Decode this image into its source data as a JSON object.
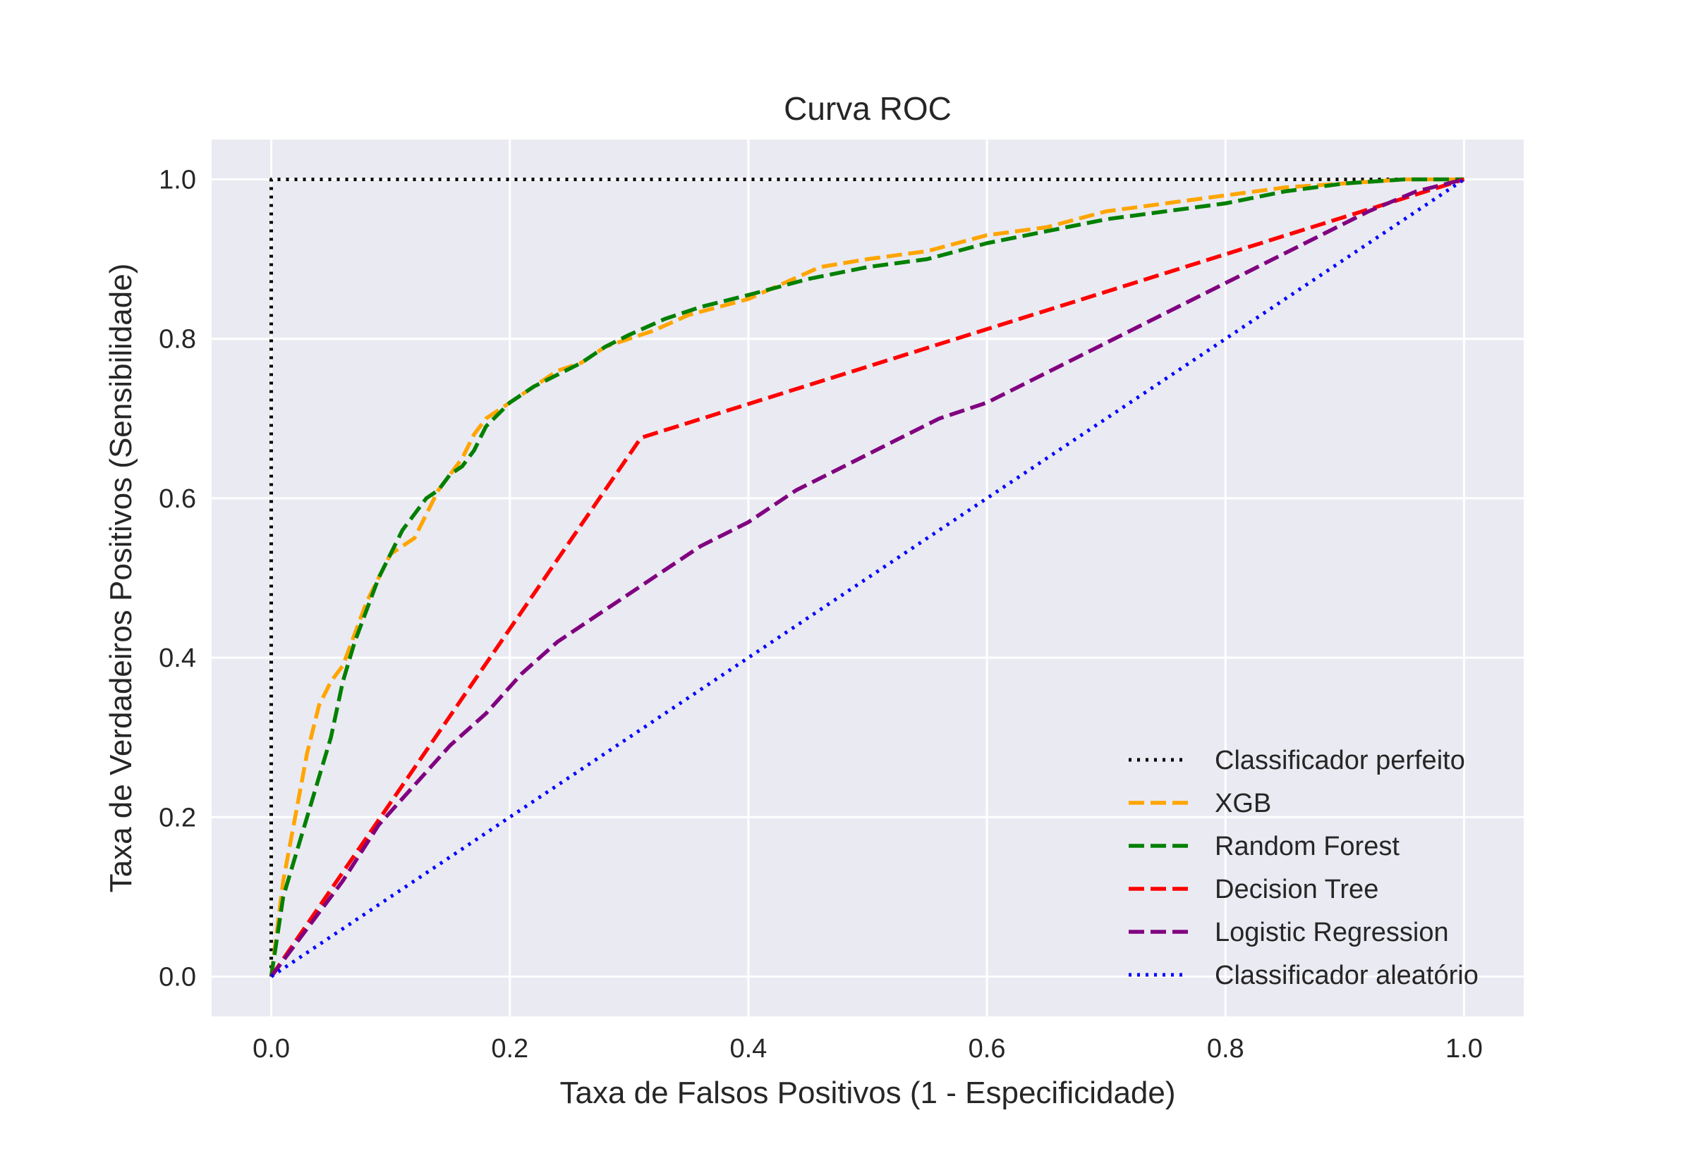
{
  "chart_data": {
    "type": "line",
    "title": "Curva ROC",
    "xlabel": "Taxa de Falsos Positivos (1 - Especificidade)",
    "ylabel": "Taxa de Verdadeiros Positivos (Sensibilidade)",
    "xlim": [
      -0.05,
      1.05
    ],
    "ylim": [
      -0.05,
      1.05
    ],
    "xticks": [
      "0.0",
      "0.2",
      "0.4",
      "0.6",
      "0.8",
      "1.0"
    ],
    "yticks": [
      "0.0",
      "0.2",
      "0.4",
      "0.6",
      "0.8",
      "1.0"
    ],
    "grid": true,
    "background": "#eaeaf2",
    "legend_position": "lower-right",
    "series": [
      {
        "name": "Classificador perfeito",
        "color": "#000000",
        "style": "dotted",
        "x": [
          0,
          0,
          1
        ],
        "y": [
          0,
          1,
          1
        ]
      },
      {
        "name": "XGB",
        "color": "#ffa500",
        "style": "dashed",
        "x": [
          0,
          0.01,
          0.02,
          0.03,
          0.04,
          0.05,
          0.06,
          0.07,
          0.08,
          0.09,
          0.1,
          0.11,
          0.12,
          0.13,
          0.14,
          0.15,
          0.16,
          0.17,
          0.18,
          0.2,
          0.22,
          0.24,
          0.26,
          0.28,
          0.3,
          0.32,
          0.35,
          0.4,
          0.43,
          0.46,
          0.5,
          0.55,
          0.6,
          0.65,
          0.7,
          0.75,
          0.8,
          0.85,
          0.9,
          0.95,
          1.0
        ],
        "y": [
          0,
          0.12,
          0.2,
          0.28,
          0.34,
          0.37,
          0.39,
          0.43,
          0.47,
          0.5,
          0.53,
          0.54,
          0.55,
          0.58,
          0.61,
          0.63,
          0.65,
          0.68,
          0.7,
          0.72,
          0.74,
          0.76,
          0.77,
          0.79,
          0.8,
          0.81,
          0.83,
          0.85,
          0.87,
          0.89,
          0.9,
          0.91,
          0.93,
          0.94,
          0.96,
          0.97,
          0.98,
          0.99,
          0.995,
          1.0,
          1.0
        ]
      },
      {
        "name": "Random Forest",
        "color": "#008000",
        "style": "dashed",
        "x": [
          0,
          0.01,
          0.02,
          0.03,
          0.04,
          0.05,
          0.06,
          0.07,
          0.08,
          0.09,
          0.1,
          0.11,
          0.12,
          0.13,
          0.14,
          0.15,
          0.16,
          0.17,
          0.18,
          0.2,
          0.22,
          0.24,
          0.26,
          0.28,
          0.3,
          0.33,
          0.36,
          0.4,
          0.45,
          0.5,
          0.55,
          0.6,
          0.65,
          0.7,
          0.75,
          0.8,
          0.85,
          0.9,
          0.95,
          1.0
        ],
        "y": [
          0,
          0.1,
          0.15,
          0.2,
          0.25,
          0.3,
          0.37,
          0.42,
          0.46,
          0.5,
          0.53,
          0.56,
          0.58,
          0.6,
          0.61,
          0.63,
          0.64,
          0.66,
          0.69,
          0.72,
          0.74,
          0.755,
          0.77,
          0.79,
          0.805,
          0.825,
          0.84,
          0.855,
          0.875,
          0.89,
          0.9,
          0.92,
          0.935,
          0.95,
          0.96,
          0.97,
          0.985,
          0.995,
          1.0,
          1.0
        ]
      },
      {
        "name": "Decision Tree",
        "color": "#ff0000",
        "style": "dashed",
        "x": [
          0,
          0.31,
          1.0
        ],
        "y": [
          0,
          0.676,
          1.0
        ]
      },
      {
        "name": "Logistic Regression",
        "color": "#800080",
        "style": "dashed",
        "x": [
          0,
          0.03,
          0.06,
          0.09,
          0.12,
          0.15,
          0.18,
          0.21,
          0.24,
          0.27,
          0.3,
          0.33,
          0.36,
          0.4,
          0.44,
          0.48,
          0.52,
          0.56,
          0.6,
          0.64,
          0.68,
          0.72,
          0.76,
          0.8,
          0.84,
          0.88,
          0.92,
          0.96,
          1.0
        ],
        "y": [
          0,
          0.06,
          0.12,
          0.19,
          0.24,
          0.29,
          0.33,
          0.38,
          0.42,
          0.45,
          0.48,
          0.51,
          0.54,
          0.57,
          0.61,
          0.64,
          0.67,
          0.7,
          0.72,
          0.75,
          0.78,
          0.81,
          0.84,
          0.87,
          0.9,
          0.93,
          0.96,
          0.985,
          1.0
        ]
      },
      {
        "name": "Classificador aleatório",
        "color": "#0000ff",
        "style": "dotted",
        "x": [
          0,
          1
        ],
        "y": [
          0,
          1
        ]
      }
    ]
  }
}
